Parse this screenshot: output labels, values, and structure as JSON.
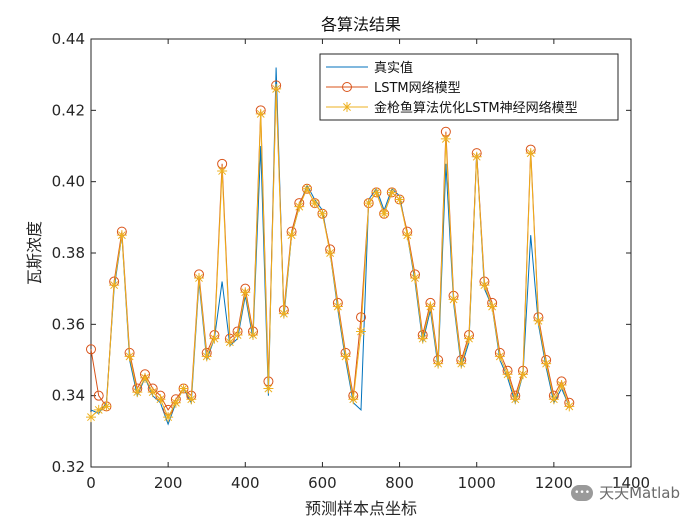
{
  "chart_data": {
    "type": "line",
    "title": "各算法结果",
    "xlabel": "预测样本点坐标",
    "ylabel": "瓦斯浓度",
    "xlim": [
      0,
      1400
    ],
    "ylim": [
      0.32,
      0.44
    ],
    "xticks": [
      0,
      200,
      400,
      600,
      800,
      1000,
      1200,
      1400
    ],
    "yticks": [
      0.32,
      0.34,
      0.36,
      0.38,
      0.4,
      0.42,
      0.44
    ],
    "grid": false,
    "legend_position": "top-right",
    "x": [
      0,
      20,
      40,
      60,
      80,
      100,
      120,
      140,
      160,
      180,
      200,
      220,
      240,
      260,
      280,
      300,
      320,
      340,
      360,
      380,
      400,
      420,
      440,
      460,
      480,
      500,
      520,
      540,
      560,
      580,
      600,
      620,
      640,
      660,
      680,
      700,
      720,
      740,
      760,
      780,
      800,
      820,
      840,
      860,
      880,
      900,
      920,
      940,
      960,
      980,
      1000,
      1020,
      1040,
      1060,
      1080,
      1100,
      1120,
      1140,
      1160,
      1180,
      1200,
      1220,
      1240
    ],
    "series": [
      {
        "name": "真实值",
        "color": "#0072BD",
        "marker": "none",
        "values": [
          0.336,
          0.335,
          0.338,
          0.37,
          0.385,
          0.35,
          0.34,
          0.345,
          0.34,
          0.338,
          0.332,
          0.338,
          0.342,
          0.338,
          0.372,
          0.35,
          0.356,
          0.372,
          0.354,
          0.356,
          0.368,
          0.356,
          0.41,
          0.34,
          0.432,
          0.362,
          0.385,
          0.393,
          0.399,
          0.395,
          0.392,
          0.38,
          0.364,
          0.35,
          0.338,
          0.336,
          0.395,
          0.398,
          0.392,
          0.398,
          0.396,
          0.385,
          0.372,
          0.355,
          0.364,
          0.348,
          0.405,
          0.366,
          0.348,
          0.355,
          0.408,
          0.37,
          0.365,
          0.35,
          0.345,
          0.338,
          0.346,
          0.385,
          0.36,
          0.348,
          0.338,
          0.342,
          0.337
        ]
      },
      {
        "name": "LSTM网络模型",
        "color": "#D95319",
        "marker": "circle",
        "values": [
          0.353,
          0.34,
          0.337,
          0.372,
          0.386,
          0.352,
          0.342,
          0.346,
          0.342,
          0.34,
          0.336,
          0.339,
          0.342,
          0.34,
          0.374,
          0.352,
          0.357,
          0.405,
          0.356,
          0.358,
          0.37,
          0.358,
          0.42,
          0.344,
          0.427,
          0.364,
          0.386,
          0.394,
          0.398,
          0.394,
          0.391,
          0.381,
          0.366,
          0.352,
          0.34,
          0.362,
          0.394,
          0.397,
          0.391,
          0.397,
          0.395,
          0.386,
          0.374,
          0.357,
          0.366,
          0.35,
          0.414,
          0.368,
          0.35,
          0.357,
          0.408,
          0.372,
          0.366,
          0.352,
          0.347,
          0.34,
          0.347,
          0.409,
          0.362,
          0.35,
          0.34,
          0.344,
          0.338
        ]
      },
      {
        "name": "金枪鱼算法优化LSTM神经网络模型",
        "color": "#EDB120",
        "marker": "asterisk",
        "values": [
          0.334,
          0.336,
          0.337,
          0.371,
          0.385,
          0.351,
          0.341,
          0.345,
          0.341,
          0.339,
          0.334,
          0.338,
          0.342,
          0.339,
          0.373,
          0.351,
          0.356,
          0.403,
          0.355,
          0.357,
          0.369,
          0.357,
          0.419,
          0.342,
          0.426,
          0.363,
          0.385,
          0.393,
          0.398,
          0.394,
          0.391,
          0.38,
          0.365,
          0.351,
          0.339,
          0.358,
          0.394,
          0.397,
          0.391,
          0.397,
          0.395,
          0.385,
          0.373,
          0.356,
          0.365,
          0.349,
          0.412,
          0.367,
          0.349,
          0.356,
          0.407,
          0.371,
          0.365,
          0.351,
          0.346,
          0.339,
          0.346,
          0.408,
          0.361,
          0.349,
          0.339,
          0.343,
          0.337
        ]
      }
    ]
  },
  "watermark": {
    "icon_text": "•••",
    "text": "天天Matlab"
  }
}
